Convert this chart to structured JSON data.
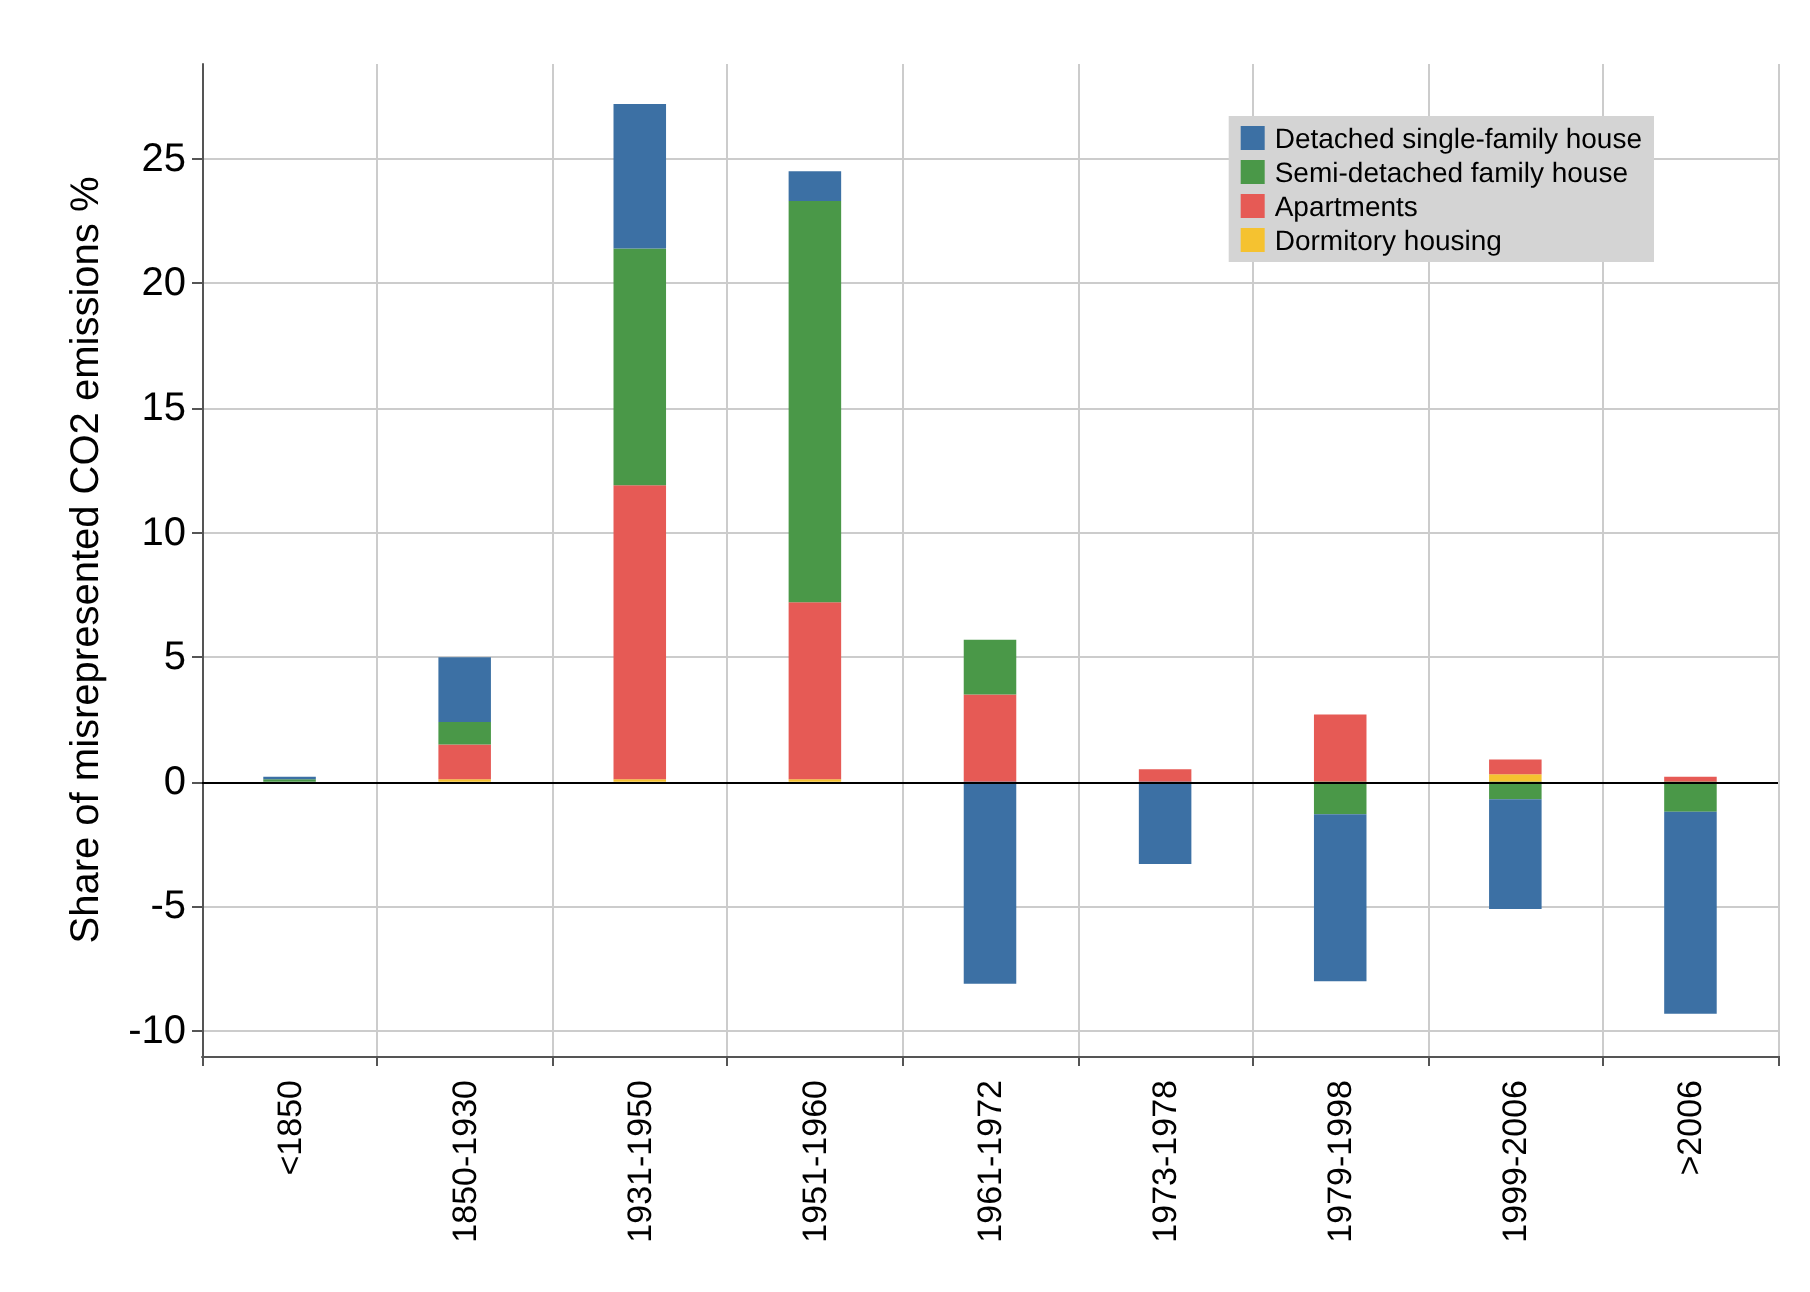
{
  "chart_data": {
    "type": "bar",
    "stacked": true,
    "ylabel": "Share of misrepresented CO2 emissions %",
    "categories": [
      "<1850",
      "1850-1930",
      "1931-1950",
      "1951-1960",
      "1961-1972",
      "1973-1978",
      "1979-1998",
      "1999-2006",
      ">2006"
    ],
    "series": [
      {
        "name": "Dormitory housing",
        "color": "#f5c230",
        "values": [
          0,
          0.1,
          0.1,
          0.1,
          0,
          0,
          0,
          0.3,
          0
        ]
      },
      {
        "name": "Apartments",
        "color": "#e65a55",
        "values": [
          0,
          1.4,
          11.8,
          7.1,
          3.5,
          0.5,
          2.7,
          0.6,
          0.2
        ]
      },
      {
        "name": "Semi-detached family house",
        "color": "#4a9848",
        "values": [
          0.1,
          0.9,
          9.5,
          16.1,
          2.2,
          0,
          -1.3,
          -0.7,
          -1.2
        ]
      },
      {
        "name": "Detached single-family house",
        "color": "#3c70a4",
        "values": [
          0.1,
          2.6,
          5.8,
          1.2,
          -8.1,
          -3.3,
          -6.7,
          -4.4,
          -8.1
        ]
      }
    ],
    "ylim": [
      -11,
      28.8
    ],
    "yticks": [
      -10,
      -5,
      0,
      5,
      10,
      15,
      20,
      25
    ],
    "grid": true,
    "legend": "top right"
  }
}
